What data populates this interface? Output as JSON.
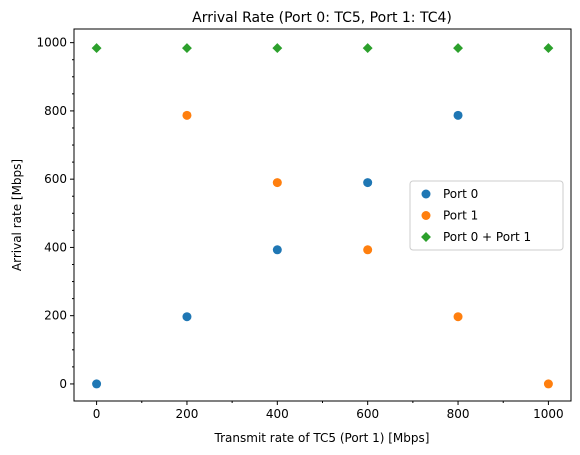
{
  "chart_data": {
    "type": "scatter",
    "title": "Arrival Rate (Port 0: TC5, Port 1: TC4)",
    "xlabel": "Transmit rate of TC5 (Port 1) [Mbps]",
    "ylabel": "Arrival rate [Mbps]",
    "xlim": [
      -50,
      1050
    ],
    "ylim": [
      -50,
      1040
    ],
    "xticks": [
      0,
      200,
      400,
      600,
      800,
      1000
    ],
    "yticks": [
      0,
      200,
      400,
      600,
      800,
      1000
    ],
    "grid": false,
    "legend": "center-right",
    "series": [
      {
        "name": "Port 0",
        "color": "#1f77b4",
        "marker": "circle",
        "x": [
          0,
          200,
          400,
          600,
          800
        ],
        "y": [
          0,
          197,
          393,
          590,
          787
        ]
      },
      {
        "name": "Port 1",
        "color": "#ff7f0e",
        "marker": "circle",
        "x": [
          200,
          400,
          600,
          800,
          1000
        ],
        "y": [
          787,
          590,
          393,
          197,
          0
        ]
      },
      {
        "name": "Port 0 + Port 1",
        "color": "#2ca02c",
        "marker": "diamond",
        "x": [
          0,
          200,
          400,
          600,
          800,
          1000
        ],
        "y": [
          984,
          984,
          984,
          984,
          984,
          984
        ]
      }
    ]
  }
}
